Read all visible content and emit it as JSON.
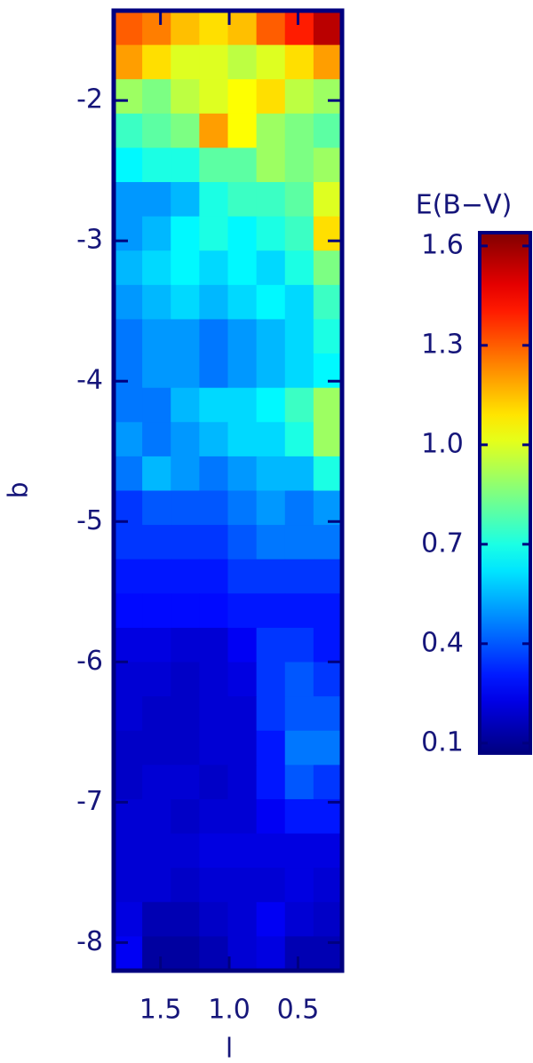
{
  "chart_data": {
    "type": "heatmap",
    "colorbar_title": "E(B−V)",
    "xlabel": "l",
    "ylabel": "b",
    "xlim": [
      1.84,
      0.18
    ],
    "ylim": [
      -8.2,
      -1.36
    ],
    "xticks": [
      1.5,
      {
        "value": 1,
        "label": "1.0"
      },
      0.5
    ],
    "yticks": [
      -2,
      -3,
      -4,
      -5,
      -6,
      -7,
      -8
    ],
    "zlim": [
      0.07,
      1.64
    ],
    "zticks": [
      0.1,
      0.4,
      0.7,
      {
        "value": 1,
        "label": "1.0"
      },
      1.3,
      1.6
    ],
    "colormap": "jet",
    "values": [
      [
        1.3,
        1.25,
        1.15,
        1.1,
        1.15,
        1.3,
        1.4,
        1.55
      ],
      [
        1.2,
        1.1,
        1.0,
        1.0,
        0.95,
        1.0,
        1.1,
        1.2
      ],
      [
        0.9,
        0.85,
        0.95,
        1.0,
        1.05,
        1.1,
        0.95,
        0.9
      ],
      [
        0.75,
        0.8,
        0.85,
        1.2,
        1.05,
        0.9,
        0.85,
        0.8
      ],
      [
        0.65,
        0.7,
        0.7,
        0.8,
        0.8,
        0.9,
        0.85,
        0.9
      ],
      [
        0.5,
        0.5,
        0.55,
        0.7,
        0.75,
        0.75,
        0.8,
        1.0
      ],
      [
        0.5,
        0.55,
        0.65,
        0.7,
        0.65,
        0.7,
        0.75,
        1.1
      ],
      [
        0.55,
        0.6,
        0.65,
        0.6,
        0.65,
        0.6,
        0.7,
        0.85
      ],
      [
        0.5,
        0.55,
        0.6,
        0.55,
        0.6,
        0.65,
        0.6,
        0.75
      ],
      [
        0.45,
        0.5,
        0.5,
        0.45,
        0.5,
        0.55,
        0.6,
        0.7
      ],
      [
        0.45,
        0.5,
        0.5,
        0.45,
        0.5,
        0.55,
        0.6,
        0.65
      ],
      [
        0.45,
        0.45,
        0.55,
        0.6,
        0.6,
        0.65,
        0.75,
        0.9
      ],
      [
        0.5,
        0.45,
        0.5,
        0.55,
        0.6,
        0.6,
        0.7,
        0.9
      ],
      [
        0.45,
        0.55,
        0.5,
        0.45,
        0.5,
        0.55,
        0.55,
        0.7
      ],
      [
        0.35,
        0.4,
        0.4,
        0.4,
        0.45,
        0.5,
        0.45,
        0.5
      ],
      [
        0.35,
        0.35,
        0.35,
        0.35,
        0.4,
        0.45,
        0.45,
        0.45
      ],
      [
        0.3,
        0.3,
        0.3,
        0.3,
        0.35,
        0.35,
        0.35,
        0.35
      ],
      [
        0.28,
        0.28,
        0.28,
        0.28,
        0.3,
        0.3,
        0.3,
        0.3
      ],
      [
        0.22,
        0.22,
        0.2,
        0.2,
        0.25,
        0.35,
        0.35,
        0.3
      ],
      [
        0.2,
        0.2,
        0.18,
        0.2,
        0.22,
        0.35,
        0.4,
        0.35
      ],
      [
        0.2,
        0.18,
        0.18,
        0.2,
        0.2,
        0.35,
        0.4,
        0.4
      ],
      [
        0.18,
        0.18,
        0.18,
        0.2,
        0.2,
        0.3,
        0.45,
        0.45
      ],
      [
        0.18,
        0.2,
        0.2,
        0.18,
        0.2,
        0.3,
        0.4,
        0.35
      ],
      [
        0.2,
        0.2,
        0.18,
        0.2,
        0.2,
        0.25,
        0.3,
        0.3
      ],
      [
        0.2,
        0.2,
        0.2,
        0.22,
        0.22,
        0.22,
        0.22,
        0.22
      ],
      [
        0.2,
        0.2,
        0.18,
        0.2,
        0.2,
        0.2,
        0.22,
        0.2
      ],
      [
        0.22,
        0.15,
        0.15,
        0.18,
        0.2,
        0.25,
        0.2,
        0.18
      ],
      [
        0.25,
        0.12,
        0.12,
        0.15,
        0.2,
        0.22,
        0.15,
        0.15
      ]
    ]
  }
}
